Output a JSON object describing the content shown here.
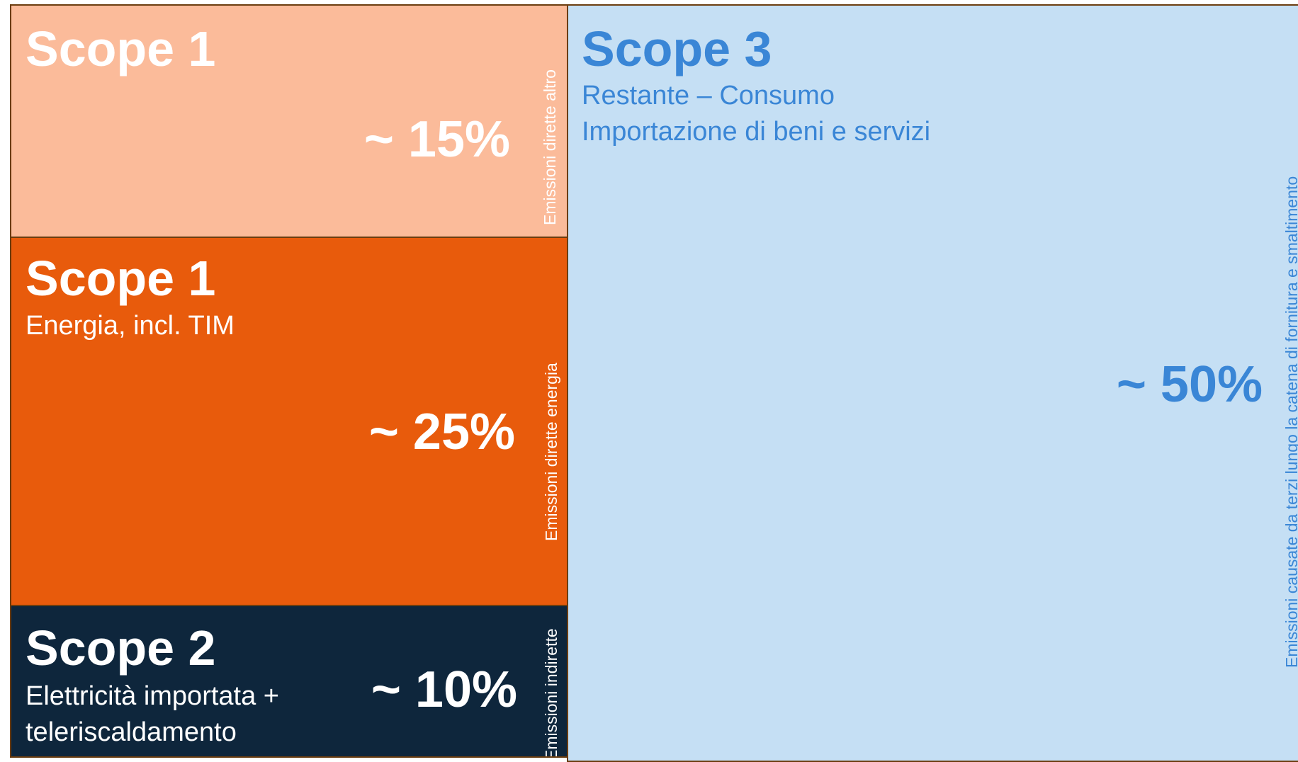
{
  "blocks": [
    {
      "title": "Scope 1",
      "percent": "~ 15%",
      "side_label": "Emissioni dirette altro"
    },
    {
      "title": "Scope 1",
      "subtitle": [
        "Energia, incl. TIM"
      ],
      "percent": "~ 25%",
      "side_label": "Emissioni dirette energia"
    },
    {
      "title": "Scope 2",
      "subtitle": [
        "Elettricità importata +",
        "teleriscaldamento"
      ],
      "percent": "~ 10%",
      "side_label": "Emissioni indirette"
    },
    {
      "title": "Scope 3",
      "subtitle": [
        "Restante – Consumo",
        "Importazione di beni e servizi"
      ],
      "percent": "~ 50%",
      "side_label": "Emissioni causate da terzi lungo la catena di fornitura e smaltimento"
    }
  ]
}
